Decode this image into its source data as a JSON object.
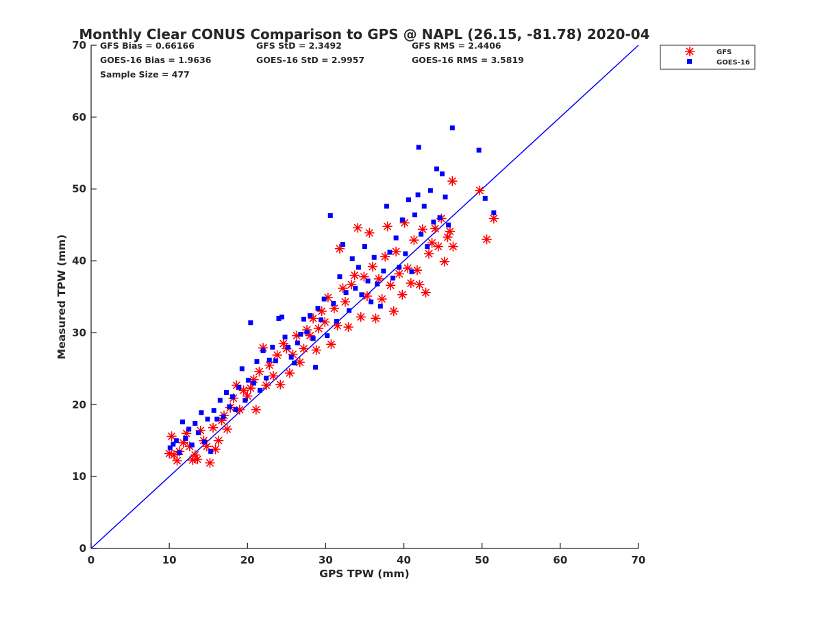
{
  "chart_data": {
    "type": "scatter",
    "title": "Monthly Clear CONUS Comparison to GPS @ NAPL (26.15, -81.78) 2020-04",
    "xlabel": "GPS TPW (mm)",
    "ylabel": "Measured TPW (mm)",
    "xlim": [
      0,
      70
    ],
    "ylim": [
      0,
      70
    ],
    "xticks": [
      0,
      10,
      20,
      30,
      40,
      50,
      60,
      70
    ],
    "yticks": [
      0,
      10,
      20,
      30,
      40,
      50,
      60,
      70
    ],
    "grid": false,
    "legend_position": "top-right, outside plot",
    "stats": [
      [
        "GFS Bias = 0.66166",
        "GFS StD = 2.3492",
        "GFS RMS = 2.4406"
      ],
      [
        "GOES-16 Bias = 1.9636",
        "GOES-16 StD = 2.9957",
        "GOES-16 RMS = 3.5819"
      ],
      [
        "Sample Size = 477"
      ]
    ],
    "reference_line": {
      "x": [
        0,
        70
      ],
      "y": [
        0,
        70
      ],
      "color": "#0000ff"
    },
    "series": [
      {
        "name": "GFS",
        "marker": "asterisk",
        "color": "#ff0000",
        "points": [
          [
            10.0,
            13.2
          ],
          [
            10.3,
            15.6
          ],
          [
            10.6,
            13.0
          ],
          [
            11.0,
            12.2
          ],
          [
            11.3,
            13.5
          ],
          [
            11.8,
            14.7
          ],
          [
            12.2,
            16.0
          ],
          [
            12.6,
            14.2
          ],
          [
            13.0,
            12.3
          ],
          [
            13.3,
            13.0
          ],
          [
            13.6,
            12.4
          ],
          [
            14.0,
            16.4
          ],
          [
            14.4,
            15.0
          ],
          [
            14.8,
            14.2
          ],
          [
            15.2,
            11.9
          ],
          [
            15.6,
            16.8
          ],
          [
            15.9,
            13.8
          ],
          [
            16.3,
            15.0
          ],
          [
            16.7,
            17.8
          ],
          [
            17.0,
            18.5
          ],
          [
            17.4,
            16.6
          ],
          [
            17.8,
            19.6
          ],
          [
            18.2,
            20.9
          ],
          [
            18.6,
            22.7
          ],
          [
            19.0,
            19.3
          ],
          [
            19.5,
            22.0
          ],
          [
            20.0,
            21.2
          ],
          [
            20.4,
            22.3
          ],
          [
            20.8,
            23.5
          ],
          [
            21.1,
            19.3
          ],
          [
            21.5,
            24.6
          ],
          [
            22.0,
            27.9
          ],
          [
            22.4,
            22.7
          ],
          [
            22.8,
            25.5
          ],
          [
            23.3,
            24.0
          ],
          [
            23.8,
            26.9
          ],
          [
            24.2,
            22.8
          ],
          [
            24.6,
            28.5
          ],
          [
            25.0,
            27.8
          ],
          [
            25.4,
            24.4
          ],
          [
            25.8,
            27.0
          ],
          [
            26.3,
            29.6
          ],
          [
            26.7,
            25.9
          ],
          [
            27.2,
            27.8
          ],
          [
            27.6,
            30.4
          ],
          [
            28.0,
            29.6
          ],
          [
            28.4,
            32.0
          ],
          [
            28.8,
            27.6
          ],
          [
            29.1,
            30.6
          ],
          [
            29.5,
            33.0
          ],
          [
            29.9,
            31.5
          ],
          [
            30.3,
            34.9
          ],
          [
            30.7,
            28.4
          ],
          [
            31.1,
            33.4
          ],
          [
            31.5,
            31.0
          ],
          [
            31.8,
            41.7
          ],
          [
            32.2,
            36.2
          ],
          [
            32.5,
            34.3
          ],
          [
            32.9,
            30.8
          ],
          [
            33.3,
            36.7
          ],
          [
            33.7,
            38.0
          ],
          [
            34.1,
            44.6
          ],
          [
            34.5,
            32.2
          ],
          [
            34.9,
            37.8
          ],
          [
            35.3,
            35.1
          ],
          [
            35.6,
            43.9
          ],
          [
            36.0,
            39.2
          ],
          [
            36.4,
            32.0
          ],
          [
            36.8,
            37.5
          ],
          [
            37.2,
            34.7
          ],
          [
            37.6,
            40.6
          ],
          [
            37.9,
            44.8
          ],
          [
            38.3,
            36.6
          ],
          [
            38.7,
            33.0
          ],
          [
            39.0,
            41.3
          ],
          [
            39.4,
            38.2
          ],
          [
            39.8,
            35.3
          ],
          [
            40.1,
            45.3
          ],
          [
            40.5,
            39.0
          ],
          [
            40.9,
            36.9
          ],
          [
            41.3,
            42.9
          ],
          [
            41.7,
            38.7
          ],
          [
            42.0,
            36.7
          ],
          [
            42.4,
            44.4
          ],
          [
            42.8,
            35.6
          ],
          [
            43.2,
            41.0
          ],
          [
            43.6,
            42.5
          ],
          [
            44.0,
            44.5
          ],
          [
            44.4,
            42.0
          ],
          [
            44.8,
            45.9
          ],
          [
            45.2,
            39.9
          ],
          [
            45.6,
            43.3
          ],
          [
            45.9,
            44.1
          ],
          [
            46.2,
            51.1
          ],
          [
            46.3,
            42.0
          ],
          [
            49.7,
            49.8
          ],
          [
            50.6,
            43.0
          ],
          [
            51.5,
            45.9
          ]
        ]
      },
      {
        "name": "GOES-16",
        "marker": "square",
        "color": "#0000ff",
        "points": [
          [
            10.1,
            14.0
          ],
          [
            10.5,
            14.5
          ],
          [
            10.9,
            15.0
          ],
          [
            11.3,
            13.3
          ],
          [
            11.7,
            17.6
          ],
          [
            12.1,
            15.3
          ],
          [
            12.5,
            16.6
          ],
          [
            12.9,
            14.4
          ],
          [
            13.3,
            17.4
          ],
          [
            13.7,
            16.1
          ],
          [
            14.1,
            18.9
          ],
          [
            14.5,
            14.8
          ],
          [
            14.9,
            18.0
          ],
          [
            15.3,
            13.5
          ],
          [
            15.7,
            19.2
          ],
          [
            16.1,
            18.0
          ],
          [
            16.5,
            20.6
          ],
          [
            16.9,
            18.3
          ],
          [
            17.3,
            21.7
          ],
          [
            17.7,
            19.7
          ],
          [
            18.1,
            21.1
          ],
          [
            18.5,
            19.3
          ],
          [
            18.9,
            22.4
          ],
          [
            19.3,
            25.0
          ],
          [
            19.7,
            20.6
          ],
          [
            20.1,
            23.4
          ],
          [
            20.4,
            31.4
          ],
          [
            20.8,
            23.0
          ],
          [
            21.2,
            26.0
          ],
          [
            21.6,
            22.0
          ],
          [
            22.0,
            27.5
          ],
          [
            22.4,
            23.7
          ],
          [
            22.8,
            26.2
          ],
          [
            23.2,
            28.0
          ],
          [
            23.6,
            26.1
          ],
          [
            24.0,
            32.0
          ],
          [
            24.4,
            32.2
          ],
          [
            24.8,
            29.4
          ],
          [
            25.2,
            28.0
          ],
          [
            25.6,
            26.6
          ],
          [
            26.0,
            25.8
          ],
          [
            26.4,
            28.6
          ],
          [
            26.8,
            29.8
          ],
          [
            27.2,
            31.9
          ],
          [
            27.6,
            30.1
          ],
          [
            28.0,
            32.4
          ],
          [
            28.4,
            29.2
          ],
          [
            28.7,
            25.2
          ],
          [
            29.0,
            33.4
          ],
          [
            29.4,
            31.8
          ],
          [
            29.8,
            34.7
          ],
          [
            30.2,
            29.6
          ],
          [
            30.6,
            46.3
          ],
          [
            31.0,
            34.1
          ],
          [
            31.4,
            31.6
          ],
          [
            31.8,
            37.8
          ],
          [
            32.2,
            42.3
          ],
          [
            32.6,
            35.6
          ],
          [
            33.0,
            33.1
          ],
          [
            33.4,
            40.3
          ],
          [
            33.8,
            36.2
          ],
          [
            34.2,
            39.1
          ],
          [
            34.6,
            35.3
          ],
          [
            35.0,
            42.0
          ],
          [
            35.4,
            37.2
          ],
          [
            35.8,
            34.3
          ],
          [
            36.2,
            40.5
          ],
          [
            36.6,
            36.8
          ],
          [
            37.0,
            33.7
          ],
          [
            37.4,
            38.6
          ],
          [
            37.8,
            47.6
          ],
          [
            38.2,
            41.2
          ],
          [
            38.6,
            37.6
          ],
          [
            39.0,
            43.2
          ],
          [
            39.4,
            39.1
          ],
          [
            39.8,
            45.7
          ],
          [
            40.2,
            41.0
          ],
          [
            40.6,
            48.5
          ],
          [
            41.0,
            38.5
          ],
          [
            41.4,
            46.4
          ],
          [
            41.8,
            49.2
          ],
          [
            41.9,
            55.8
          ],
          [
            42.2,
            43.7
          ],
          [
            42.6,
            47.6
          ],
          [
            43.0,
            42.0
          ],
          [
            43.4,
            49.8
          ],
          [
            43.8,
            45.4
          ],
          [
            44.2,
            52.8
          ],
          [
            44.6,
            46.0
          ],
          [
            44.9,
            52.1
          ],
          [
            45.3,
            48.9
          ],
          [
            45.7,
            45.0
          ],
          [
            46.2,
            58.5
          ],
          [
            49.6,
            55.4
          ],
          [
            50.4,
            48.7
          ],
          [
            51.5,
            46.7
          ]
        ]
      }
    ]
  }
}
